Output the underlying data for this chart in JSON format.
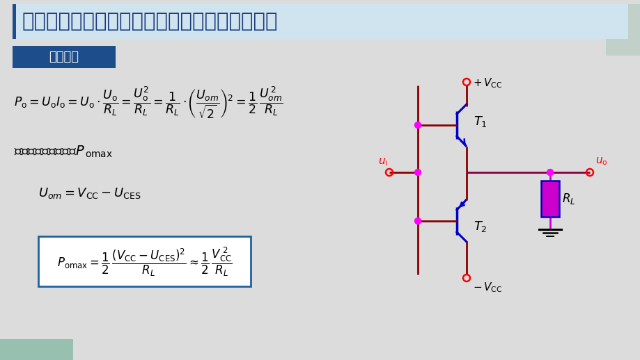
{
  "title": "乙类双电源互补对称功率放大电路的功率与效率",
  "bg_color": "#dcdcdc",
  "title_bg_color": "#d0e4f0",
  "section_bg": "#1e4d8c",
  "section_text": "输出功率",
  "circuit_wire_color": "#8b0000",
  "circuit_wire_color2": "#800040",
  "circuit_node_color": "#ff00ff",
  "transistor_color": "#0000cc",
  "vcc_label_color": "#ff0000",
  "rl_fill_color": "#cc00cc",
  "rl_edge_color": "#0000aa",
  "teal_color": "#8bbcaa"
}
